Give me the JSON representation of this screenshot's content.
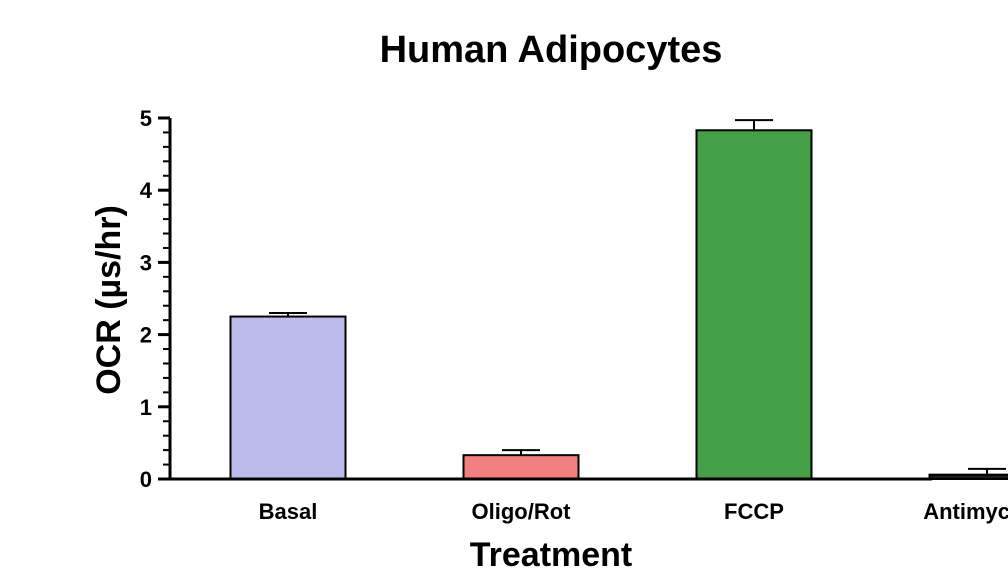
{
  "chart_data": {
    "type": "bar",
    "title": "Human Adipocytes",
    "xlabel": "Treatment",
    "ylabel": "OCR (µs/hr)",
    "categories": [
      "Basal",
      "Oligo/Rot",
      "FCCP",
      "Antimycin A"
    ],
    "values": [
      2.25,
      0.33,
      4.83,
      0.06
    ],
    "errors": [
      0.05,
      0.07,
      0.14,
      0.08
    ],
    "colors": [
      "#bcbcec",
      "#f28080",
      "#43a047",
      "#1a1a1a"
    ],
    "ylim": [
      0,
      5
    ],
    "yticks": [
      0,
      1,
      2,
      3,
      4,
      5
    ],
    "ytick_labels": [
      "0",
      "1",
      "2",
      "3",
      "4",
      "5"
    ],
    "minor_ticks_per_major": 4,
    "grid": false,
    "legend": "none"
  }
}
